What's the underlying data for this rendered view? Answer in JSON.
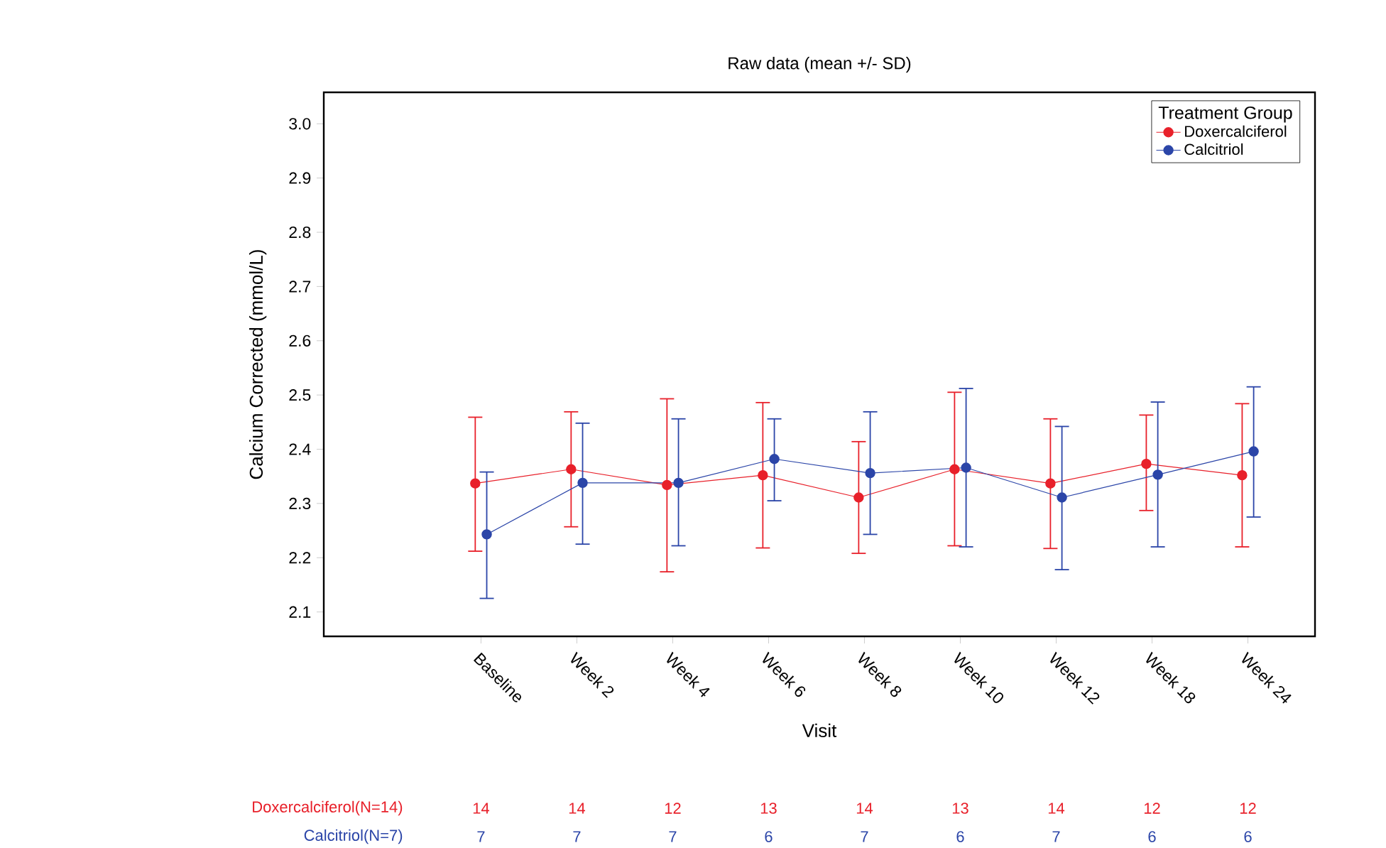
{
  "chart_data": {
    "type": "line",
    "title": "Raw data (mean +/- SD)",
    "xlabel": "Visit",
    "ylabel": "Calcium Corrected (mmol/L)",
    "legend_title": "Treatment Group",
    "categories": [
      "Baseline",
      "Week 2",
      "Week 4",
      "Week 6",
      "Week 8",
      "Week 10",
      "Week 12",
      "Week 18",
      "Week 24"
    ],
    "series": [
      {
        "name": "Doxercalciferol",
        "color": "#e8202a",
        "values": [
          2.337,
          2.363,
          2.334,
          2.352,
          2.311,
          2.363,
          2.337,
          2.373,
          2.352
        ],
        "errors": [
          [
            2.212,
            2.459
          ],
          [
            2.257,
            2.469
          ],
          [
            2.174,
            2.493
          ],
          [
            2.218,
            2.486
          ],
          [
            2.208,
            2.414
          ],
          [
            2.222,
            2.505
          ],
          [
            2.217,
            2.456
          ],
          [
            2.287,
            2.463
          ],
          [
            2.22,
            2.484
          ]
        ]
      },
      {
        "name": "Calcitriol",
        "color": "#2b45a8",
        "values": [
          2.243,
          2.338,
          2.338,
          2.382,
          2.356,
          2.366,
          2.311,
          2.353,
          2.396
        ],
        "errors": [
          [
            2.125,
            2.358
          ],
          [
            2.225,
            2.448
          ],
          [
            2.222,
            2.456
          ],
          [
            2.305,
            2.456
          ],
          [
            2.243,
            2.469
          ],
          [
            2.22,
            2.512
          ],
          [
            2.178,
            2.442
          ],
          [
            2.22,
            2.487
          ],
          [
            2.275,
            2.515
          ]
        ]
      }
    ],
    "ylim": [
      2.055,
      3.058
    ],
    "yticks": [
      2.1,
      2.2,
      2.3,
      2.4,
      2.5,
      2.6,
      2.7,
      2.8,
      2.9,
      {
        "value": 3.0,
        "label": "3.0"
      }
    ],
    "marker": "circle",
    "line_style": "solid",
    "legend": "top right",
    "grid": false,
    "annotations": [
      "Doxercalciferol(N=14)",
      "14",
      "14",
      "12",
      "13",
      "14",
      "13",
      "14",
      "12",
      "12",
      "Calcitriol(N=7)",
      "7",
      "7",
      "7",
      "6",
      "7",
      "6",
      "7",
      "6",
      "6"
    ]
  }
}
